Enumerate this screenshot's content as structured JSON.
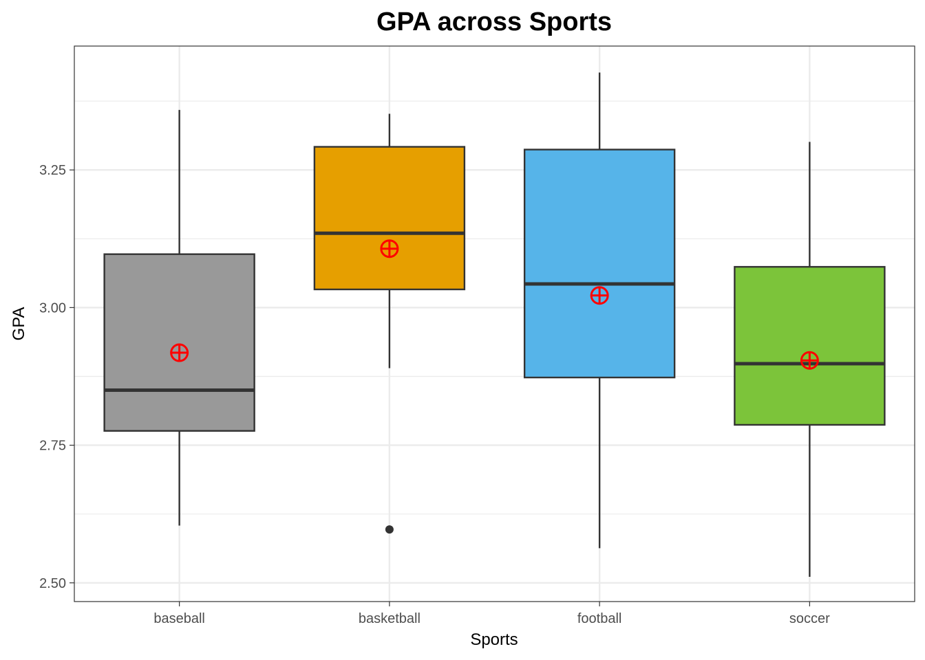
{
  "chart_data": {
    "type": "boxplot",
    "title": "GPA across Sports",
    "xlabel": "Sports",
    "ylabel": "GPA",
    "ylim": [
      2.466,
      3.475
    ],
    "yticks": [
      2.5,
      2.75,
      3.0,
      3.25
    ],
    "ytick_labels": [
      "2.50",
      "2.75",
      "3.00",
      "3.25"
    ],
    "categories": [
      "baseball",
      "basketball",
      "football",
      "soccer"
    ],
    "grid": true,
    "legend": "none",
    "mean_marker": "circle-plus",
    "mean_marker_color": "#FF0000",
    "box_outline_color": "#333333",
    "series": [
      {
        "category": "baseball",
        "color": "#999999",
        "whisker_low": 2.604,
        "q1": 2.776,
        "median": 2.85,
        "q3": 3.097,
        "whisker_high": 3.359,
        "mean": 2.918,
        "outliers": []
      },
      {
        "category": "basketball",
        "color": "#E69F00",
        "whisker_low": 2.89,
        "q1": 3.033,
        "median": 3.135,
        "q3": 3.292,
        "whisker_high": 3.352,
        "mean": 3.107,
        "outliers": [
          2.597
        ]
      },
      {
        "category": "football",
        "color": "#56B4E9",
        "whisker_low": 2.563,
        "q1": 2.873,
        "median": 3.043,
        "q3": 3.287,
        "whisker_high": 3.427,
        "mean": 3.022,
        "outliers": []
      },
      {
        "category": "soccer",
        "color": "#7CC43A",
        "whisker_low": 2.511,
        "q1": 2.787,
        "median": 2.898,
        "q3": 3.074,
        "whisker_high": 3.301,
        "mean": 2.904,
        "outliers": []
      }
    ]
  }
}
